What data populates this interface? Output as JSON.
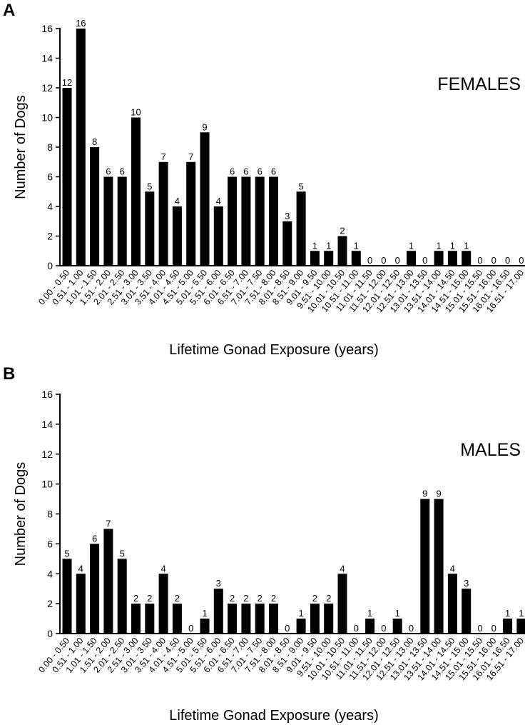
{
  "chart_data": [
    {
      "panel": "A",
      "type": "bar",
      "group_label": "FEMALES",
      "xlabel": "Lifetime Gonad Exposure (years)",
      "ylabel": "Number of Dogs",
      "ylim": [
        0,
        16
      ],
      "yticks": [
        "0",
        "2",
        "4",
        "6",
        "8",
        "10",
        "12",
        "14",
        "16"
      ],
      "grid": false,
      "categories": [
        "0.00 - 0.50",
        "0.51 - 1.00",
        "1.01 - 1.50",
        "1.51 - 2.00",
        "2.01 - 2.50",
        "2.51 - 3.00",
        "3.01 - 3.50",
        "3.51 - 4.00",
        "4.01 - 4.50",
        "4.51 - 5.00",
        "5.01 - 5.50",
        "5.51 - 6.00",
        "6.01 - 6.50",
        "6.51 - 7.00",
        "7.01 - 7.50",
        "7.51 - 8.00",
        "8.01 - 8.50",
        "8.51 - 9.00",
        "9.01 - 9.50",
        "9.51 - 10.00",
        "10.01 - 10.50",
        "10.51 - 11.00",
        "11.01 - 11.50",
        "11.51 - 12.00",
        "12.01 - 12.50",
        "12.51 - 13.00",
        "13.01 - 13.50",
        "13.51 - 14.00",
        "14.01 - 14.50",
        "14.51 - 15.00",
        "15.01 - 15.50",
        "15.51 - 16.00",
        "16.01 - 16.50",
        "16.51 - 17.00"
      ],
      "values": [
        12,
        16,
        8,
        6,
        6,
        10,
        5,
        7,
        4,
        7,
        9,
        4,
        6,
        6,
        6,
        6,
        3,
        5,
        1,
        1,
        2,
        1,
        0,
        0,
        0,
        1,
        0,
        1,
        1,
        1,
        0,
        0,
        0,
        0
      ],
      "bar_color": "#000000"
    },
    {
      "panel": "B",
      "type": "bar",
      "group_label": "MALES",
      "xlabel": "Lifetime Gonad Exposure (years)",
      "ylabel": "Number of Dogs",
      "ylim": [
        0,
        16
      ],
      "yticks": [
        "0",
        "2",
        "4",
        "6",
        "8",
        "10",
        "12",
        "14",
        "16"
      ],
      "grid": false,
      "categories": [
        "0.00 - 0.50",
        "0.51 - 1.00",
        "1.01 - 1.50",
        "1.51 - 2.00",
        "2.01 - 2.50",
        "2.51 - 3.00",
        "3.01 - 3.50",
        "3.51 - 4.00",
        "4.01 - 4.50",
        "4.51 - 5.00",
        "5.01 - 5.50",
        "5.51 - 6.00",
        "6.01 - 6.50",
        "6.51 - 7.00",
        "7.01 - 7.50",
        "7.51 - 8.00",
        "8.01 - 8.50",
        "8.51 - 9.00",
        "9.01 - 9.50",
        "9.51 - 10.00",
        "10.01 - 10.50",
        "10.51 - 11.00",
        "11.01 - 11.50",
        "11.51 - 12.00",
        "12.01 - 12.50",
        "12.51 - 13.00",
        "13.01 - 13.50",
        "13.51 - 14.00",
        "14.01 - 14.50",
        "14.51 - 15.00",
        "15.01 - 15.50",
        "15.51 - 16.00",
        "16.01 - 16.50",
        "16.51 - 17.00"
      ],
      "values": [
        5,
        4,
        6,
        7,
        5,
        2,
        2,
        4,
        2,
        0,
        1,
        3,
        2,
        2,
        2,
        2,
        0,
        1,
        2,
        2,
        4,
        0,
        1,
        0,
        1,
        0,
        9,
        9,
        4,
        3,
        0,
        0,
        1,
        1
      ],
      "bar_color": "#000000"
    }
  ]
}
